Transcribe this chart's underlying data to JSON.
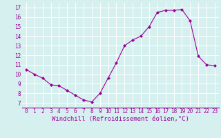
{
  "x": [
    0,
    1,
    2,
    3,
    4,
    5,
    6,
    7,
    8,
    9,
    10,
    11,
    12,
    13,
    14,
    15,
    16,
    17,
    18,
    19,
    20,
    21,
    22,
    23
  ],
  "y": [
    10.5,
    10.0,
    9.6,
    8.9,
    8.8,
    8.3,
    7.8,
    7.3,
    7.1,
    8.0,
    9.6,
    11.2,
    13.0,
    13.6,
    14.0,
    15.0,
    16.5,
    16.7,
    16.7,
    16.8,
    15.6,
    11.9,
    11.0,
    10.9
  ],
  "line_color": "#990099",
  "marker": "D",
  "marker_size": 2,
  "bg_color": "#d6f0ef",
  "grid_color": "#ffffff",
  "xlabel": "Windchill (Refroidissement éolien,°C)",
  "xlim": [
    -0.5,
    23.5
  ],
  "ylim": [
    6.5,
    17.5
  ],
  "yticks": [
    7,
    8,
    9,
    10,
    11,
    12,
    13,
    14,
    15,
    16,
    17
  ],
  "xticks": [
    0,
    1,
    2,
    3,
    4,
    5,
    6,
    7,
    8,
    9,
    10,
    11,
    12,
    13,
    14,
    15,
    16,
    17,
    18,
    19,
    20,
    21,
    22,
    23
  ],
  "tick_color": "#990099",
  "label_color": "#990099",
  "xlabel_fontsize": 6.5,
  "tick_fontsize": 5.5,
  "linewidth": 0.8
}
